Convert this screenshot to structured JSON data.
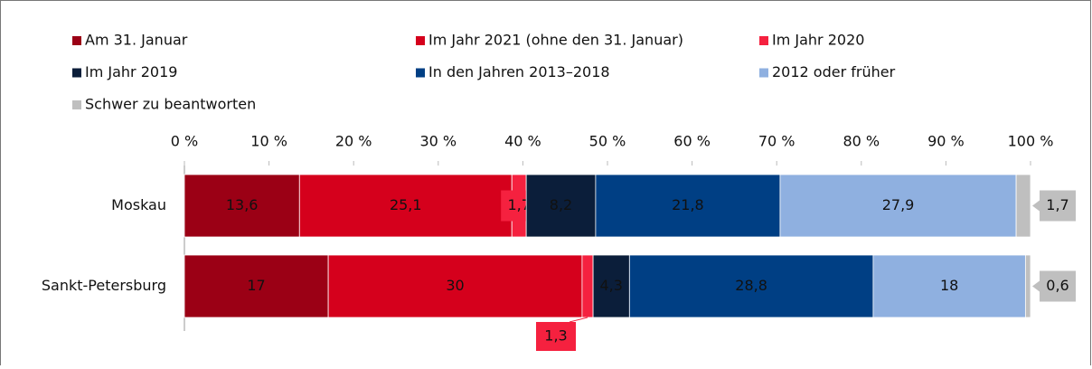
{
  "chart_data": {
    "type": "stacked-bar-horizontal",
    "categories": [
      "Moskau",
      "Sankt-Petersburg"
    ],
    "series": [
      {
        "name": "Am 31. Januar",
        "color": "#9b0015",
        "values": [
          13.6,
          17
        ],
        "value_labels": [
          "13,6",
          "17"
        ]
      },
      {
        "name": "Im Jahr 2021 (ohne den 31. Januar)",
        "color": "#d5001c",
        "values": [
          25.1,
          30
        ],
        "value_labels": [
          "25,1",
          "30"
        ]
      },
      {
        "name": "Im Jahr 2020",
        "color": "#f5213f",
        "values": [
          1.7,
          1.3
        ],
        "value_labels": [
          "1,7",
          "1,3"
        ]
      },
      {
        "name": "Im Jahr 2019",
        "color": "#0b1e3a",
        "values": [
          8.2,
          4.3
        ],
        "value_labels": [
          "8,2",
          "4,3"
        ]
      },
      {
        "name": "In den Jahren 2013–2018",
        "color": "#003f84",
        "values": [
          21.8,
          28.8
        ],
        "value_labels": [
          "21,8",
          "28,8"
        ]
      },
      {
        "name": "2012 oder früher",
        "color": "#8fb0e0",
        "values": [
          27.9,
          18
        ],
        "value_labels": [
          "27,9",
          "18"
        ]
      },
      {
        "name": "Schwer zu beantworten",
        "color": "#bfbfbf",
        "values": [
          1.7,
          0.6
        ],
        "value_labels": [
          "1,7",
          "0,6"
        ]
      }
    ],
    "xlim": [
      0,
      100
    ],
    "xticks": [
      {
        "value": 0,
        "label": "0 %"
      },
      {
        "value": 10,
        "label": "10 %"
      },
      {
        "value": 20,
        "label": "20 %"
      },
      {
        "value": 30,
        "label": "30 %"
      },
      {
        "value": 40,
        "label": "40 %"
      },
      {
        "value": 50,
        "label": "50 %"
      },
      {
        "value": 60,
        "label": "60 %"
      },
      {
        "value": 70,
        "label": "70 %"
      },
      {
        "value": 80,
        "label": "80 %"
      },
      {
        "value": 90,
        "label": "90 %"
      },
      {
        "value": 100,
        "label": "100 %"
      }
    ],
    "legend": "top"
  }
}
